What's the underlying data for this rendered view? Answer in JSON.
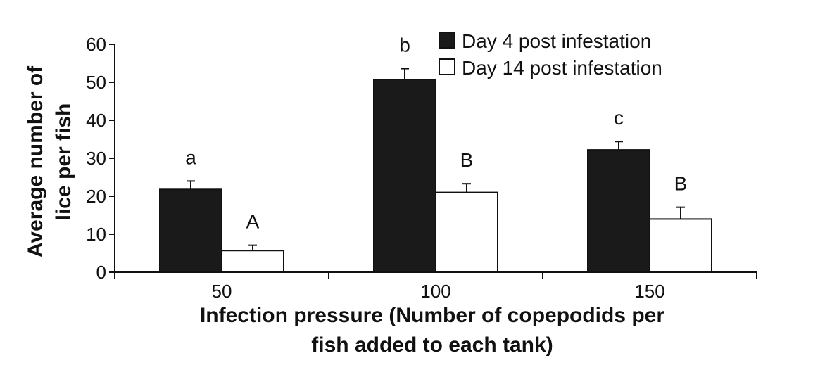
{
  "chart_data": {
    "type": "bar",
    "categories": [
      "50",
      "100",
      "150"
    ],
    "series": [
      {
        "name": "Day 4 post infestation",
        "values": [
          21.8,
          50.7,
          32.2
        ],
        "errors": [
          2.2,
          2.9,
          2.2
        ],
        "labels": [
          "a",
          "b",
          "c"
        ],
        "fill": "#1a1a1a"
      },
      {
        "name": "Day 14 post infestation",
        "values": [
          5.7,
          21.0,
          14.0
        ],
        "errors": [
          1.4,
          2.3,
          3.1
        ],
        "labels": [
          "A",
          "B",
          "B"
        ],
        "fill": "#ffffff"
      }
    ],
    "ylabel_lines": [
      "Average number of",
      "lice per fish"
    ],
    "xlabel_lines": [
      "Infection pressure (Number of copepodids per",
      "fish added to each tank)"
    ],
    "ylim": [
      0,
      60
    ],
    "yticks": [
      0,
      10,
      20,
      30,
      40,
      50,
      60
    ],
    "grid": false,
    "legend": "top-right"
  }
}
